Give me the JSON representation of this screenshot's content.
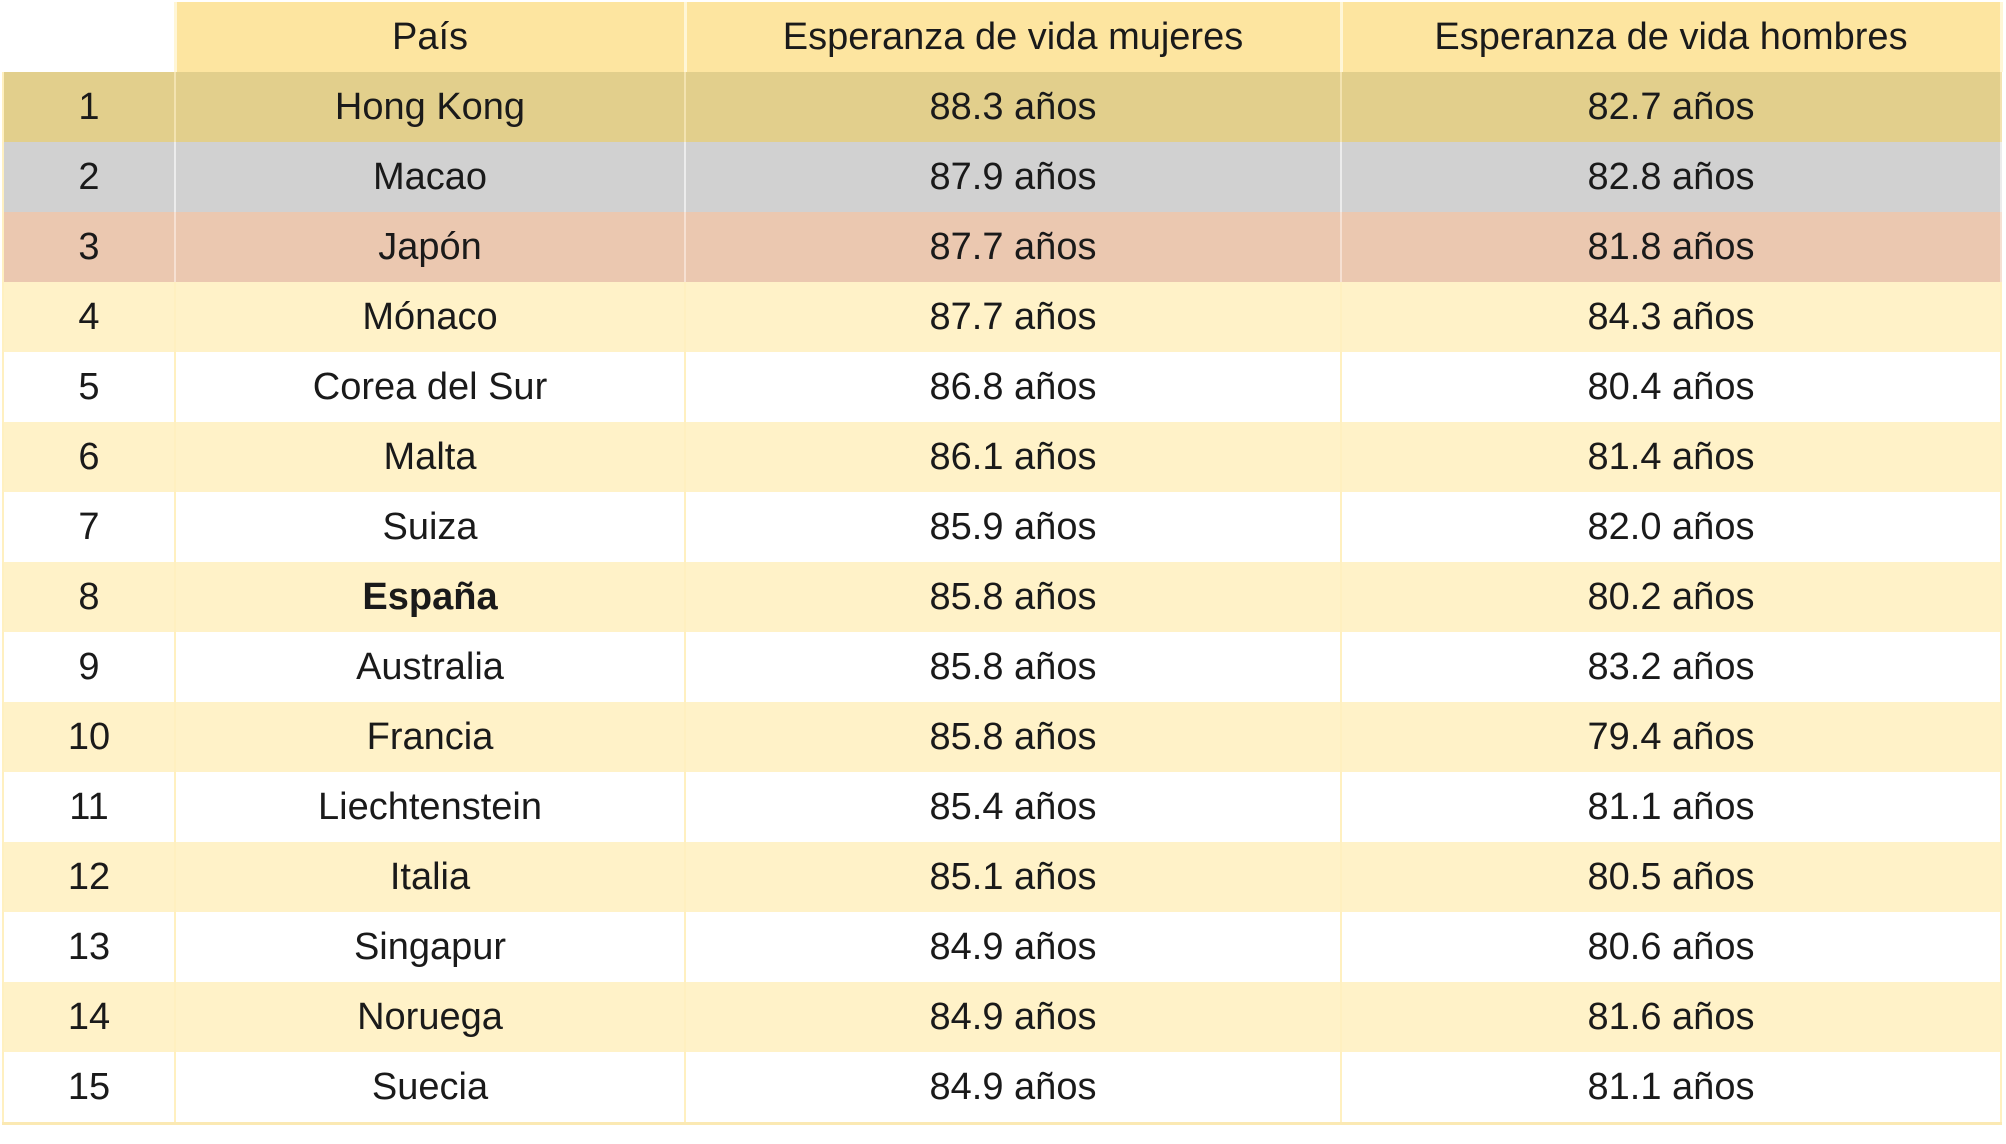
{
  "chart_data": {
    "type": "table",
    "columns": [
      "",
      "País",
      "Esperanza de vida mujeres",
      "Esperanza de vida hombres"
    ],
    "rows": [
      {
        "rank": "1",
        "country": "Hong Kong",
        "women": "88.3 años",
        "men": "82.7 años",
        "highlight": "gold"
      },
      {
        "rank": "2",
        "country": "Macao",
        "women": "87.9 años",
        "men": "82.8 años",
        "highlight": "silver"
      },
      {
        "rank": "3",
        "country": "Japón",
        "women": "87.7 años",
        "men": "81.8 años",
        "highlight": "bronze"
      },
      {
        "rank": "4",
        "country": "Mónaco",
        "women": "87.7 años",
        "men": "84.3 años",
        "highlight": "alt"
      },
      {
        "rank": "5",
        "country": "Corea del Sur",
        "women": "86.8 años",
        "men": "80.4 años",
        "highlight": "plain"
      },
      {
        "rank": "6",
        "country": "Malta",
        "women": "86.1 años",
        "men": "81.4 años",
        "highlight": "alt"
      },
      {
        "rank": "7",
        "country": "Suiza",
        "women": "85.9 años",
        "men": "82.0 años",
        "highlight": "plain"
      },
      {
        "rank": "8",
        "country": "España",
        "women": "85.8 años",
        "men": "80.2 años",
        "highlight": "alt",
        "bold": true
      },
      {
        "rank": "9",
        "country": "Australia",
        "women": "85.8 años",
        "men": "83.2 años",
        "highlight": "plain"
      },
      {
        "rank": "10",
        "country": "Francia",
        "women": "85.8 años",
        "men": "79.4 años",
        "highlight": "alt"
      },
      {
        "rank": "11",
        "country": "Liechtenstein",
        "women": "85.4 años",
        "men": "81.1 años",
        "highlight": "plain"
      },
      {
        "rank": "12",
        "country": "Italia",
        "women": "85.1 años",
        "men": "80.5 años",
        "highlight": "alt"
      },
      {
        "rank": "13",
        "country": "Singapur",
        "women": "84.9 años",
        "men": "80.6 años",
        "highlight": "plain"
      },
      {
        "rank": "14",
        "country": "Noruega",
        "women": "84.9 años",
        "men": "81.6 años",
        "highlight": "alt"
      },
      {
        "rank": "15",
        "country": "Suecia",
        "women": "84.9 años",
        "men": "81.1 años",
        "highlight": "plain"
      }
    ],
    "colors": {
      "header": "#fde5a0",
      "gold": "#e2cf8c",
      "silver": "#d1d1d1",
      "bronze": "#ebc8b0",
      "alt": "#fff2c8",
      "plain": "#ffffff"
    }
  }
}
